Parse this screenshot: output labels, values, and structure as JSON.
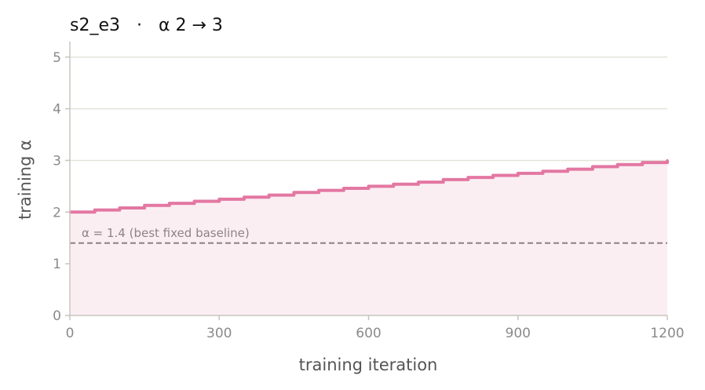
{
  "chart_data": {
    "type": "line",
    "title": "s2_e3   ·   α 2 → 3",
    "xlabel": "training iteration",
    "ylabel": "training α",
    "xlim": [
      0,
      1200
    ],
    "ylim": [
      0,
      5.3
    ],
    "xticks": [
      0,
      300,
      600,
      900,
      1200
    ],
    "yticks": [
      0,
      1,
      2,
      3,
      4,
      5
    ],
    "grid": "horizontal",
    "step_width": 50,
    "series": [
      {
        "x": [
          0,
          50,
          100,
          150,
          200,
          250,
          300,
          350,
          400,
          450,
          500,
          550,
          600,
          650,
          700,
          750,
          800,
          850,
          900,
          950,
          1000,
          1050,
          1100,
          1150,
          1200
        ],
        "y": [
          2.0,
          2.04,
          2.08,
          2.13,
          2.17,
          2.21,
          2.25,
          2.29,
          2.33,
          2.38,
          2.42,
          2.46,
          2.5,
          2.54,
          2.58,
          2.63,
          2.67,
          2.71,
          2.75,
          2.79,
          2.83,
          2.88,
          2.92,
          2.96,
          3.0
        ],
        "color": "#e377a2",
        "fill": "#fbeef2"
      }
    ],
    "reference_line": {
      "y": 1.4,
      "label": "α = 1.4 (best fixed baseline)",
      "color": "#8e7f84"
    }
  }
}
